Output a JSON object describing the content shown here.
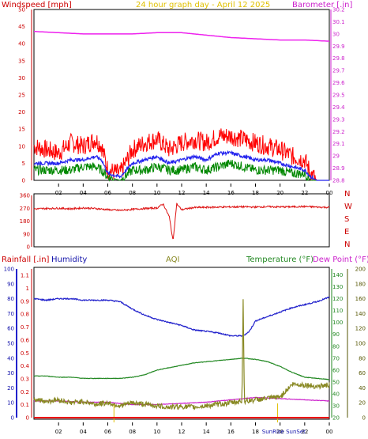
{
  "header": {
    "left_title": "Windspeed [mph]",
    "center_title": "24 hour graph day - April 12 2025",
    "right_title": "Barometer [.in]"
  },
  "x_axis": {
    "hour_labels": [
      "02",
      "04",
      "06",
      "08",
      "10",
      "12",
      "14",
      "16",
      "18",
      "20",
      "22",
      "00"
    ],
    "sun_labels": [
      "SunRise",
      "SunSet"
    ]
  },
  "colors": {
    "wind": "#ff0000",
    "gust_avg": "#2222ee",
    "wind_dir": "#dd1111",
    "barometer": "#ee22ee",
    "humidity": "#2222cc",
    "aqi": "#888822",
    "temperature": "#228822",
    "dewpoint": "#cc22cc",
    "rainfall": "#ee0000",
    "green_wind": "#008800",
    "sun_marker": "#e0c000"
  },
  "chart_data": [
    {
      "type": "line",
      "title": "24 hour graph day - April 12 2025",
      "ylabel": "Windspeed [mph]",
      "ylim": [
        0,
        50
      ],
      "y_ticks": [
        "0",
        "5",
        "10",
        "15",
        "20",
        "25",
        "30",
        "35",
        "40",
        "45",
        "50"
      ],
      "y2label": "Barometer [.in]",
      "y2lim": [
        28.8,
        30.2
      ],
      "y2_ticks": [
        "28.8",
        "28.9",
        "29",
        "29.1",
        "29.2",
        "29.3",
        "29.4",
        "29.5",
        "29.6",
        "29.7",
        "29.8",
        "29.9",
        "30",
        "30.1",
        "30.2"
      ],
      "series": [
        {
          "name": "Windspeed [mph]",
          "axis": "y",
          "color": "#ff0000",
          "x": [
            0,
            1,
            2,
            3,
            4,
            5,
            5.5,
            6,
            7,
            8,
            9,
            10,
            11,
            12,
            13,
            14,
            15,
            16,
            17,
            18,
            19,
            20,
            21,
            22,
            22.5,
            23,
            24
          ],
          "values": [
            10,
            9,
            8,
            11,
            10,
            12,
            10,
            3,
            2,
            9,
            11,
            12,
            9,
            11,
            12,
            11,
            13,
            13,
            12,
            11,
            10,
            9,
            7,
            6,
            2,
            0,
            0
          ]
        },
        {
          "axis": "y",
          "color": "#2222ee",
          "x": [
            0,
            1,
            2,
            3,
            4,
            5,
            5.5,
            6,
            7,
            8,
            9,
            10,
            11,
            12,
            13,
            14,
            15,
            16,
            17,
            18,
            19,
            20,
            21,
            22,
            22.5,
            23,
            24
          ],
          "values": [
            5,
            5,
            5,
            6,
            6,
            7,
            6,
            2,
            1,
            5,
            6,
            7,
            5,
            6,
            7,
            6,
            8,
            8,
            7,
            6,
            6,
            5,
            4,
            3,
            1,
            0,
            0
          ]
        },
        {
          "axis": "y",
          "color": "#008800",
          "x": [
            0,
            1,
            2,
            3,
            4,
            5,
            5.5,
            6,
            7,
            8,
            9,
            10,
            11,
            12,
            13,
            14,
            15,
            16,
            17,
            18,
            19,
            20,
            21,
            22,
            22.5,
            23,
            24
          ],
          "values": [
            3,
            3,
            3,
            3,
            4,
            4,
            3,
            1,
            0,
            3,
            3,
            4,
            3,
            3,
            4,
            3,
            4,
            5,
            4,
            3,
            3,
            3,
            2,
            2,
            0,
            0,
            0
          ]
        },
        {
          "name": "Barometer [.in]",
          "axis": "y2",
          "color": "#ee22ee",
          "x": [
            0,
            2,
            4,
            6,
            8,
            10,
            12,
            14,
            16,
            18,
            20,
            22,
            24
          ],
          "values": [
            30.02,
            30.01,
            30.0,
            30.0,
            30.0,
            30.01,
            30.01,
            29.99,
            29.97,
            29.96,
            29.95,
            29.95,
            29.94
          ]
        }
      ]
    },
    {
      "type": "line",
      "y_ticks": [
        "0",
        "90",
        "180",
        "270",
        "360"
      ],
      "ylim": [
        0,
        360
      ],
      "compass_labels": [
        "N",
        "W",
        "S",
        "E",
        "N"
      ],
      "series": [
        {
          "axis": "y",
          "color": "#dd1111",
          "x": [
            0,
            1,
            2,
            3,
            4,
            5,
            6,
            7,
            8,
            9,
            10,
            10.5,
            11,
            11.3,
            11.6,
            12,
            13,
            14,
            15,
            16,
            17,
            18,
            19,
            20,
            21,
            22,
            23,
            24
          ],
          "values": [
            265,
            268,
            270,
            266,
            272,
            268,
            260,
            255,
            262,
            268,
            272,
            300,
            210,
            40,
            300,
            260,
            275,
            276,
            278,
            279,
            280,
            278,
            281,
            279,
            280,
            282,
            278,
            276
          ]
        }
      ]
    },
    {
      "type": "line",
      "ylabel": "Rainfall [.in]",
      "y_rain_ticks": [
        "0",
        "0.1",
        "0.2",
        "0.3",
        "0.4",
        "0.5",
        "0.6",
        "0.7",
        "0.8",
        "0.9",
        "1",
        "1.1"
      ],
      "y_rain_lim": [
        0,
        1.15
      ],
      "y_pct_label": "Humidity",
      "y_pct_ticks": [
        "0",
        "10",
        "20",
        "30",
        "40",
        "50",
        "60",
        "70",
        "80",
        "90",
        "100"
      ],
      "ylim": [
        0,
        100
      ],
      "aqi_label": "AQI",
      "temp_label": "Temperature (°F)",
      "dew_label": "Dew Point (°F)",
      "y_temp_ticks": [
        "20",
        "30",
        "40",
        "50",
        "60",
        "70",
        "80",
        "90",
        "100",
        "110",
        "120",
        "130",
        "140"
      ],
      "y_temp_lim": [
        20,
        145
      ],
      "y_aqi_ticks": [
        "0",
        "20",
        "40",
        "60",
        "80",
        "100",
        "120",
        "140",
        "160",
        "180",
        "200"
      ],
      "y_aqi_lim": [
        0,
        200
      ],
      "series": [
        {
          "name": "Humidity",
          "axis": "pct",
          "color": "#2222cc",
          "x": [
            0,
            1,
            2,
            3,
            4,
            5,
            6,
            7,
            8,
            9,
            10,
            11,
            12,
            13,
            14,
            15,
            16,
            17,
            17.5,
            18,
            19,
            20,
            21,
            22,
            23,
            24
          ],
          "values": [
            80,
            79,
            80,
            80,
            79,
            79,
            79,
            78,
            73,
            69,
            66,
            64,
            62,
            59,
            58,
            57,
            55,
            55,
            58,
            65,
            68,
            71,
            74,
            76,
            78,
            81
          ]
        },
        {
          "name": "Temperature (°F)",
          "axis": "temp",
          "color": "#228822",
          "x": [
            0,
            1,
            2,
            3,
            4,
            5,
            6,
            7,
            8,
            9,
            10,
            11,
            12,
            13,
            14,
            15,
            16,
            17,
            18,
            19,
            20,
            21,
            22,
            23,
            24
          ],
          "values": [
            55,
            55,
            54,
            54,
            53,
            53,
            53,
            53,
            54,
            56,
            60,
            62,
            64,
            66,
            67,
            68,
            69,
            70,
            69,
            67,
            63,
            58,
            54,
            53,
            52
          ]
        },
        {
          "name": "Dew Point (°F)",
          "axis": "temp",
          "color": "#cc22cc",
          "x": [
            0,
            2,
            4,
            6,
            8,
            10,
            12,
            14,
            16,
            18,
            20,
            22,
            24
          ],
          "values": [
            34,
            34,
            33,
            33,
            31,
            31,
            32,
            33,
            35,
            37,
            36,
            35,
            34
          ]
        },
        {
          "name": "AQI",
          "axis": "aqi",
          "color": "#888822",
          "x": [
            0,
            1,
            2,
            3,
            4,
            5,
            6,
            7,
            8,
            9,
            10,
            11,
            12,
            13,
            14,
            15,
            16,
            16.9,
            17,
            17.1,
            18,
            19,
            20,
            21,
            22,
            23,
            24
          ],
          "values": [
            25,
            22,
            24,
            20,
            22,
            18,
            20,
            16,
            20,
            18,
            16,
            14,
            15,
            14,
            16,
            18,
            20,
            22,
            160,
            22,
            24,
            26,
            28,
            45,
            44,
            42,
            44
          ]
        },
        {
          "name": "Rainfall [.in]",
          "axis": "rain",
          "color": "#ee0000",
          "x": [
            0,
            24
          ],
          "values": [
            0,
            0
          ]
        }
      ]
    }
  ]
}
